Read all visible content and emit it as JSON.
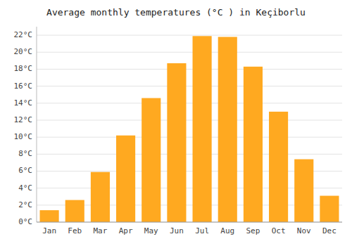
{
  "chart_data": {
    "type": "bar",
    "title": "Average monthly temperatures (°C ) in Keçiborlu",
    "categories": [
      "Jan",
      "Feb",
      "Mar",
      "Apr",
      "May",
      "Jun",
      "Jul",
      "Aug",
      "Sep",
      "Oct",
      "Nov",
      "Dec"
    ],
    "values": [
      1.4,
      2.6,
      5.9,
      10.2,
      14.6,
      18.7,
      21.9,
      21.8,
      18.3,
      13.0,
      7.4,
      3.1
    ],
    "color": "#FFA920",
    "ylim": [
      0,
      23
    ],
    "yticks": [
      {
        "value": 0,
        "label": "0°C"
      },
      {
        "value": 2,
        "label": "2°C"
      },
      {
        "value": 4,
        "label": "4°C"
      },
      {
        "value": 6,
        "label": "6°C"
      },
      {
        "value": 8,
        "label": "8°C"
      },
      {
        "value": 10,
        "label": "10°C"
      },
      {
        "value": 12,
        "label": "12°C"
      },
      {
        "value": 14,
        "label": "14°C"
      },
      {
        "value": 16,
        "label": "16°C"
      },
      {
        "value": 18,
        "label": "18°C"
      },
      {
        "value": 20,
        "label": "20°C"
      },
      {
        "value": 22,
        "label": "22°C"
      }
    ],
    "grid": true
  }
}
